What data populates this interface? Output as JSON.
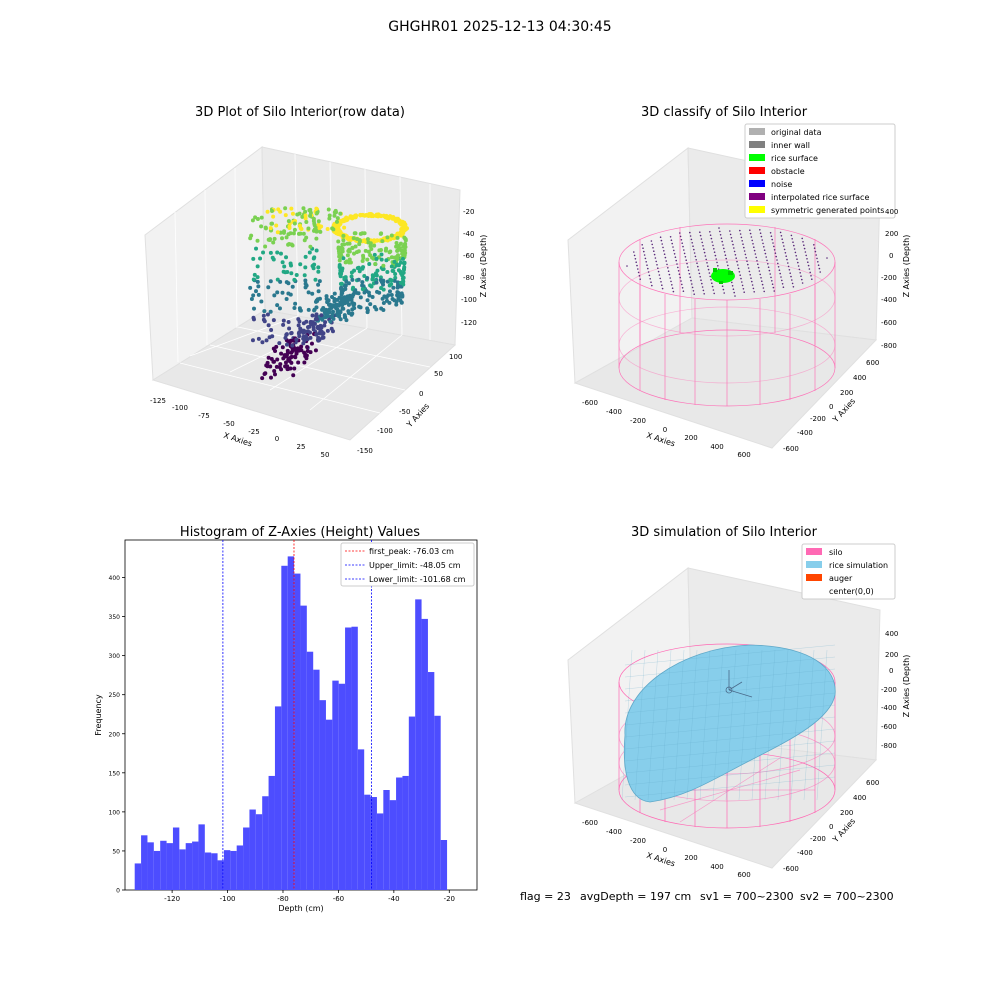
{
  "suptitle": "GHGHR01 2025-12-13 04:30:45",
  "footer": {
    "flag": "flag = 23",
    "avg_depth": "avgDepth = 197 cm",
    "sv1": "sv1 = 700~2300",
    "sv2": "sv2 = 700~2300"
  },
  "colors": {
    "hist_bar": "#4d4dff",
    "peak_line": "#ff0000",
    "limit_line": "#0000ff",
    "silo_wire": "#ff69b4",
    "rice_surface": "#87ceeb",
    "auger": "#ff4500",
    "noise": "#0000ff",
    "rice_green": "#00ff00"
  },
  "chart_data": [
    {
      "type": "scatter3d",
      "title": "3D Plot of Silo Interior(row data)",
      "xlabel": "X Axies",
      "ylabel": "Y Axies",
      "zlabel": "Z Axies (Depth)",
      "x_ticks": [
        "-125",
        "-100",
        "-75",
        "-50",
        "-25",
        "0",
        "25",
        "50"
      ],
      "y_ticks": [
        "100",
        "50",
        "0",
        "-50",
        "-100",
        "-150"
      ],
      "z_ticks": [
        "-20",
        "-40",
        "-60",
        "-80",
        "-100",
        "-120"
      ],
      "colormap": "viridis"
    },
    {
      "type": "scatter3d",
      "title": "3D classify of Silo Interior",
      "xlabel": "X Axies",
      "ylabel": "Y Axies",
      "zlabel": "Z Axies (Depth)",
      "x_ticks": [
        "-600",
        "-400",
        "-200",
        "0",
        "200",
        "400",
        "600"
      ],
      "y_ticks": [
        "600",
        "400",
        "200",
        "0",
        "-200",
        "-400",
        "-600"
      ],
      "z_ticks": [
        "400",
        "200",
        "0",
        "-200",
        "-400",
        "-600",
        "-800"
      ],
      "legend": {
        "position": "upper-right",
        "entries": [
          {
            "label": "original data",
            "color": "#b0b0b0"
          },
          {
            "label": "inner wall",
            "color": "#808080"
          },
          {
            "label": "rice surface",
            "color": "#00ff00"
          },
          {
            "label": "obstacle",
            "color": "#ff0000"
          },
          {
            "label": "noise",
            "color": "#0000ff"
          },
          {
            "label": "interpolated rice surface",
            "color": "#800080"
          },
          {
            "label": "symmetric generated points",
            "color": "#ffff00"
          }
        ]
      }
    },
    {
      "type": "bar",
      "title": "Histogram of Z-Axies (Height) Values",
      "xlabel": "Depth (cm)",
      "ylabel": "Frequency",
      "xlim": [
        -137,
        -10
      ],
      "ylim": [
        0,
        448
      ],
      "x_ticks": [
        -120,
        -100,
        -80,
        -60,
        -40,
        -20
      ],
      "y_ticks": [
        0,
        50,
        100,
        150,
        200,
        250,
        300,
        350,
        400
      ],
      "bin_start": -133.5,
      "bin_width": 2.3,
      "values": [
        34,
        70,
        61,
        50,
        63,
        60,
        80,
        52,
        60,
        62,
        84,
        48,
        47,
        38,
        51,
        50,
        57,
        80,
        103,
        97,
        120,
        146,
        235,
        415,
        427,
        405,
        364,
        305,
        282,
        243,
        218,
        268,
        264,
        336,
        337,
        180,
        122,
        119,
        98,
        128,
        115,
        144,
        146,
        222,
        372,
        347,
        279,
        223,
        64
      ],
      "lines": [
        {
          "label": "first_peak: -76.03 cm",
          "x": -76.03,
          "color": "#ff0000"
        },
        {
          "label": "Upper_limit: -48.05 cm",
          "x": -48.05,
          "color": "#0000ff"
        },
        {
          "label": "Lower_limit: -101.68 cm",
          "x": -101.68,
          "color": "#0000ff"
        }
      ],
      "legend_position": "upper-right"
    },
    {
      "type": "surface3d",
      "title": "3D simulation of Silo Interior",
      "xlabel": "X Axies",
      "ylabel": "Y Axies",
      "zlabel": "Z Axies (Depth)",
      "x_ticks": [
        "-600",
        "-400",
        "-200",
        "0",
        "200",
        "400",
        "600"
      ],
      "y_ticks": [
        "600",
        "400",
        "200",
        "0",
        "-200",
        "-400",
        "-600"
      ],
      "z_ticks": [
        "400",
        "200",
        "0",
        "-200",
        "-400",
        "-600",
        "-800"
      ],
      "legend": {
        "position": "upper-right",
        "entries": [
          {
            "label": "silo",
            "color": "#ff69b4"
          },
          {
            "label": "rice simulation",
            "color": "#87ceeb"
          },
          {
            "label": "auger",
            "color": "#ff4500"
          },
          {
            "label": "center(0,0)",
            "color": "#ffffff"
          }
        ]
      }
    }
  ]
}
